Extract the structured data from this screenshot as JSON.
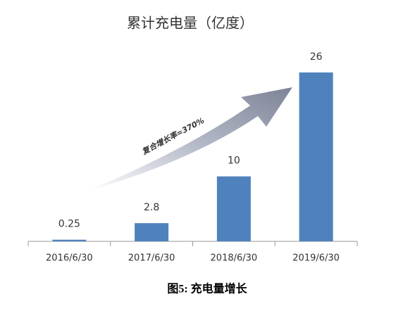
{
  "chart_data": {
    "type": "bar",
    "title": "累计充电量（亿度）",
    "categories": [
      "2016/6/30",
      "2017/6/30",
      "2018/6/30",
      "2019/6/30"
    ],
    "values": [
      0.25,
      2.8,
      10,
      26
    ],
    "color": "#4f81bd",
    "ylim": [
      0,
      26
    ],
    "annotation": "复合增长率=370%"
  },
  "caption": "图5: 充电量增长"
}
